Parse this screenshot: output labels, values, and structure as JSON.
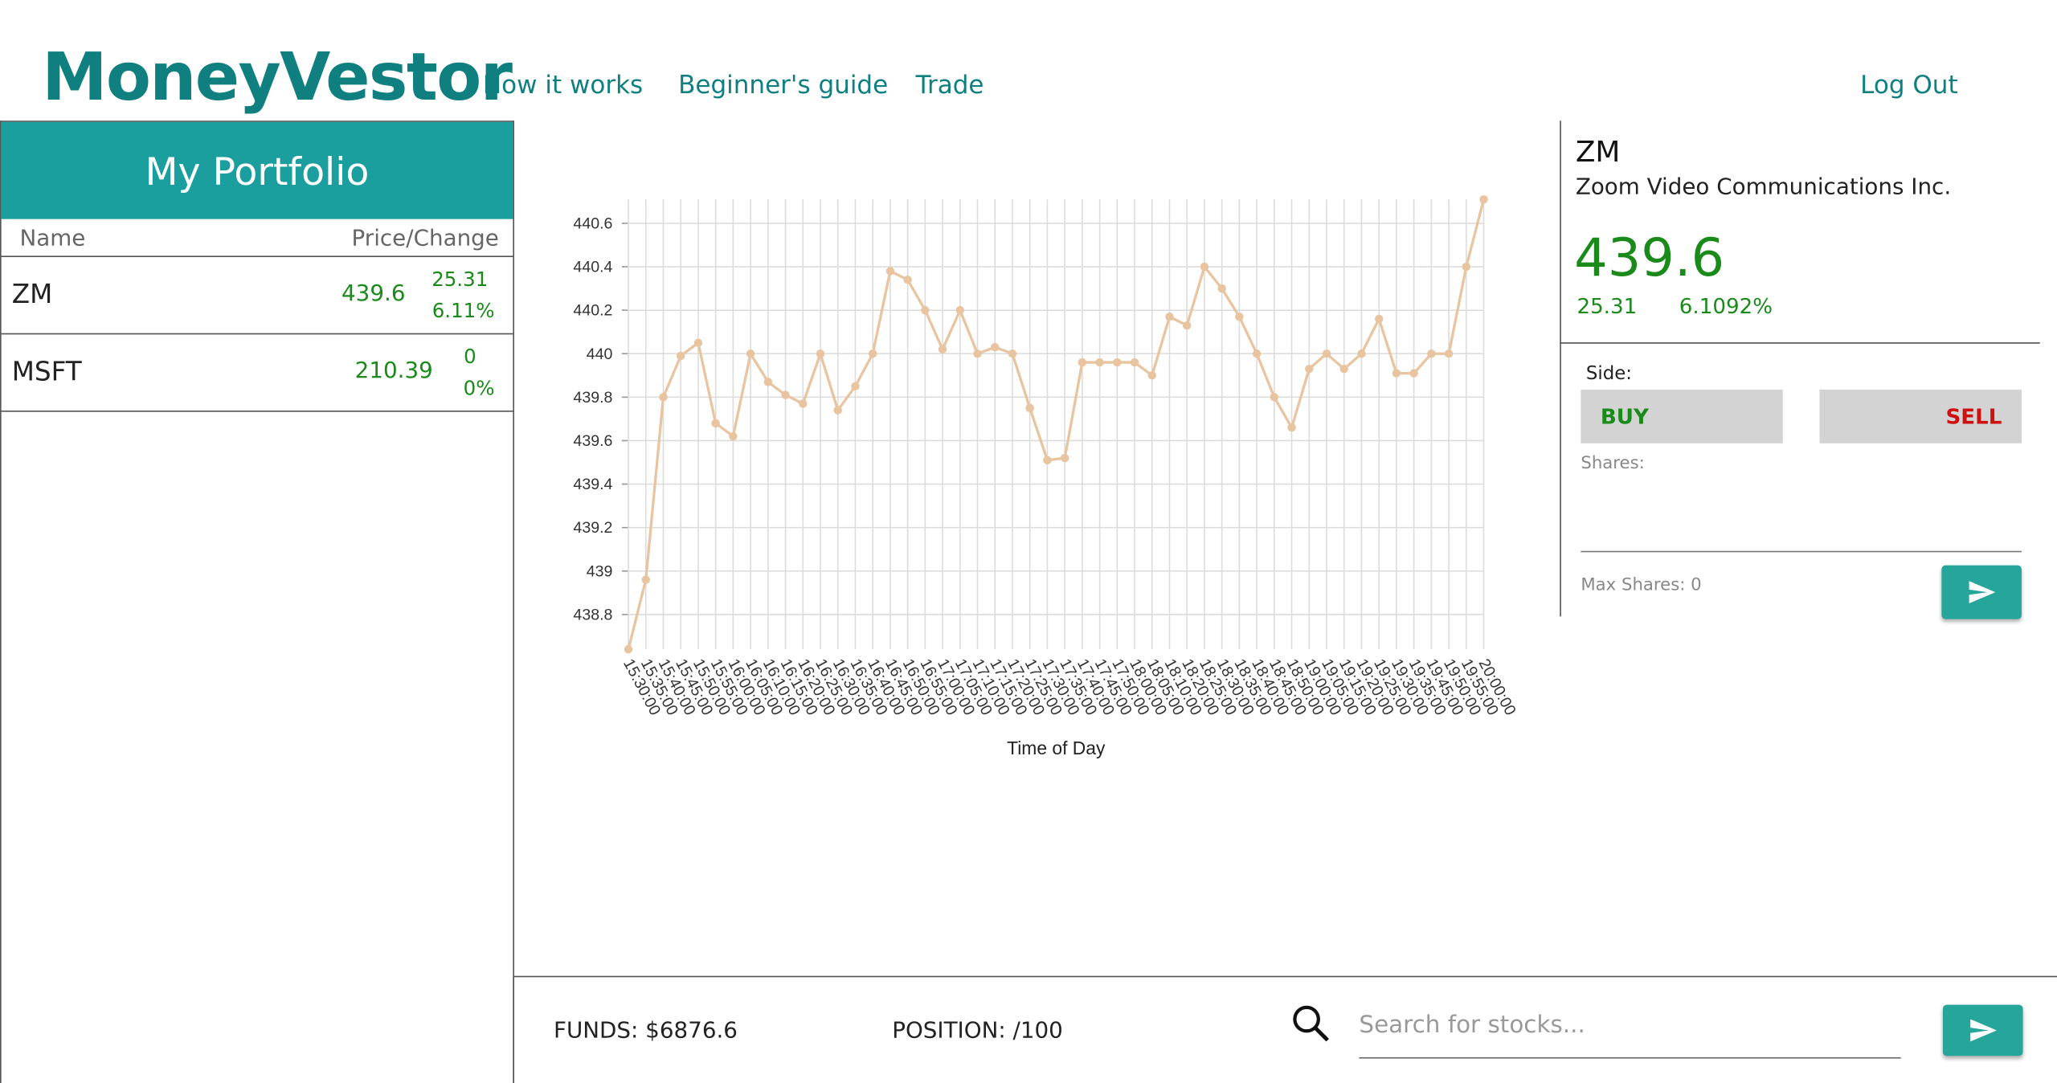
{
  "header": {
    "brand": "MoneyVestor",
    "nav": [
      "How it works",
      "Beginner's guide",
      "Trade"
    ],
    "logout": "Log Out"
  },
  "portfolio": {
    "title": "My Portfolio",
    "columns": [
      "Name",
      "Price/Change"
    ],
    "rows": [
      {
        "name": "ZM",
        "price": "439.6",
        "change": "25.31",
        "change_pct": "6.11%"
      },
      {
        "name": "MSFT",
        "price": "210.39",
        "change": "0",
        "change_pct": "0%"
      }
    ]
  },
  "chart_data": {
    "type": "line",
    "x_label": "Time of Day",
    "color": "#e8c4a0",
    "grid": true,
    "categories": [
      "15:30:00",
      "15:35:00",
      "15:40:00",
      "15:45:00",
      "15:50:00",
      "15:55:00",
      "16:00:00",
      "16:05:00",
      "16:10:00",
      "16:15:00",
      "16:20:00",
      "16:25:00",
      "16:30:00",
      "16:35:00",
      "16:40:00",
      "16:45:00",
      "16:50:00",
      "16:55:00",
      "17:00:00",
      "17:05:00",
      "17:10:00",
      "17:15:00",
      "17:20:00",
      "17:25:00",
      "17:30:00",
      "17:35:00",
      "17:40:00",
      "17:45:00",
      "17:50:00",
      "18:00:00",
      "18:05:00",
      "18:10:00",
      "18:20:00",
      "18:25:00",
      "18:30:00",
      "18:35:00",
      "18:40:00",
      "18:45:00",
      "18:50:00",
      "19:00:00",
      "19:05:00",
      "19:15:00",
      "19:20:00",
      "19:25:00",
      "19:30:00",
      "19:35:00",
      "19:45:00",
      "19:50:00",
      "19:55:00",
      "20:00:00"
    ],
    "values": [
      438.64,
      438.96,
      439.8,
      439.99,
      440.05,
      439.68,
      439.62,
      440.0,
      439.87,
      439.81,
      439.77,
      440.0,
      439.74,
      439.85,
      440.0,
      440.38,
      440.34,
      440.2,
      440.02,
      440.2,
      440.0,
      440.03,
      440.0,
      439.75,
      439.51,
      439.52,
      439.96,
      439.96,
      439.96,
      439.96,
      439.9,
      440.17,
      440.13,
      440.4,
      440.3,
      440.17,
      440.0,
      439.8,
      439.66,
      439.93,
      440.0,
      439.93,
      440.0,
      440.16,
      439.91,
      439.91,
      440.0,
      440.0,
      440.4,
      440.71
    ],
    "ylim": [
      438.64,
      440.71
    ],
    "yticks": [
      438.8,
      439,
      439.2,
      439.4,
      439.6,
      439.8,
      440,
      440.2,
      440.4,
      440.6
    ]
  },
  "detail": {
    "symbol": "ZM",
    "company": "Zoom Video Communications Inc.",
    "price": "439.6",
    "change": "25.31",
    "change_pct": "6.1092%",
    "side_label": "Side:",
    "buy": "BUY",
    "sell": "SELL",
    "shares_label": "Shares:",
    "max_shares": "Max Shares: 0"
  },
  "footer": {
    "funds": "FUNDS: $6876.6",
    "position": "POSITION: /100",
    "search_placeholder": "Search for stocks..."
  }
}
